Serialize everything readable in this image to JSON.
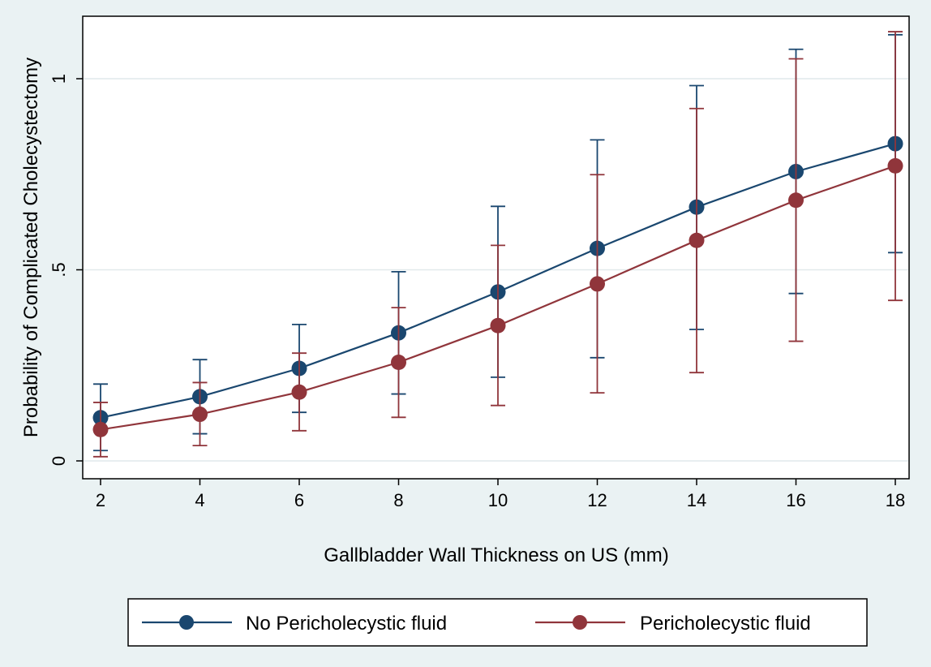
{
  "chart_data": {
    "type": "line",
    "xlabel": "Gallbladder Wall Thickness on US (mm)",
    "ylabel": "Probability of Complicated Cholecystectomy",
    "xlim": [
      2,
      18
    ],
    "ylim": [
      0,
      1.12
    ],
    "x": [
      2,
      4,
      6,
      8,
      10,
      12,
      14,
      16,
      18
    ],
    "x_ticks": [
      2,
      4,
      6,
      8,
      10,
      12,
      14,
      16,
      18
    ],
    "y_ticks": [
      {
        "value": 0,
        "label": "0"
      },
      {
        "value": 0.5,
        "label": ".5"
      },
      {
        "value": 1,
        "label": "1"
      }
    ],
    "grid": "horizontal",
    "legend_position": "bottom",
    "series": [
      {
        "name": "No Pericholecystic fluid",
        "color": "#1a476f",
        "values": [
          0.113,
          0.168,
          0.242,
          0.335,
          0.442,
          0.556,
          0.664,
          0.757,
          0.83
        ],
        "ci_low": [
          0.027,
          0.071,
          0.127,
          0.175,
          0.219,
          0.27,
          0.344,
          0.438,
          0.545
        ],
        "ci_high": [
          0.201,
          0.265,
          0.357,
          0.495,
          0.666,
          0.84,
          0.982,
          1.077,
          1.115
        ]
      },
      {
        "name": "Pericholecystic fluid",
        "color": "#90353b",
        "values": [
          0.082,
          0.122,
          0.18,
          0.258,
          0.354,
          0.463,
          0.577,
          0.682,
          0.772
        ],
        "ci_low": [
          0.011,
          0.04,
          0.079,
          0.114,
          0.145,
          0.178,
          0.231,
          0.313,
          0.42
        ],
        "ci_high": [
          0.153,
          0.205,
          0.282,
          0.401,
          0.564,
          0.749,
          0.922,
          1.052,
          1.123
        ]
      }
    ]
  }
}
